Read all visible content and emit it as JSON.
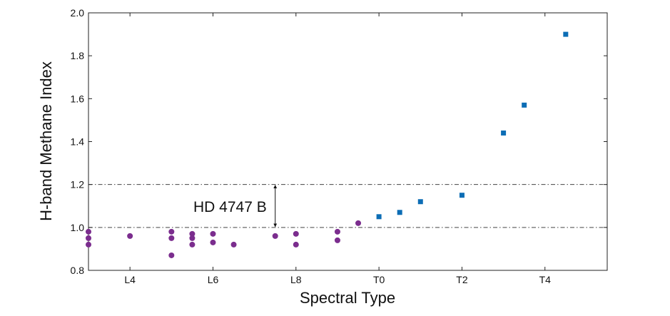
{
  "chart_data": {
    "type": "scatter",
    "title": "",
    "xlabel": "Spectral Type",
    "ylabel": "H-band Methane Index",
    "xlim": [
      13,
      25.5
    ],
    "ylim": [
      0.8,
      2.0
    ],
    "grid": false,
    "x_ticks": [
      {
        "value": 14,
        "label": "L4"
      },
      {
        "value": 16,
        "label": "L6"
      },
      {
        "value": 18,
        "label": "L8"
      },
      {
        "value": 20,
        "label": "T0"
      },
      {
        "value": 22,
        "label": "T2"
      },
      {
        "value": 24,
        "label": "T4"
      }
    ],
    "y_ticks": [
      {
        "value": 0.8,
        "label": "0.8"
      },
      {
        "value": 1.0,
        "label": "1.0"
      },
      {
        "value": 1.2,
        "label": "1.2"
      },
      {
        "value": 1.4,
        "label": "1.4"
      },
      {
        "value": 1.6,
        "label": "1.6"
      },
      {
        "value": 1.8,
        "label": "1.8"
      },
      {
        "value": 2.0,
        "label": "2.0"
      }
    ],
    "reference_lines": [
      1.0,
      1.2
    ],
    "series": [
      {
        "marker": "circle",
        "color": "#7b2d8e",
        "points": [
          {
            "x": 13.0,
            "y": 0.98
          },
          {
            "x": 13.0,
            "y": 0.95
          },
          {
            "x": 13.0,
            "y": 0.92
          },
          {
            "x": 14.0,
            "y": 0.96
          },
          {
            "x": 15.0,
            "y": 0.98
          },
          {
            "x": 15.0,
            "y": 0.95
          },
          {
            "x": 15.0,
            "y": 0.87
          },
          {
            "x": 15.5,
            "y": 0.97
          },
          {
            "x": 15.5,
            "y": 0.95
          },
          {
            "x": 15.5,
            "y": 0.92
          },
          {
            "x": 16.0,
            "y": 0.97
          },
          {
            "x": 16.0,
            "y": 0.93
          },
          {
            "x": 16.5,
            "y": 0.92
          },
          {
            "x": 17.5,
            "y": 0.96
          },
          {
            "x": 18.0,
            "y": 0.97
          },
          {
            "x": 18.0,
            "y": 0.92
          },
          {
            "x": 19.0,
            "y": 0.98
          },
          {
            "x": 19.0,
            "y": 0.94
          },
          {
            "x": 19.5,
            "y": 1.02
          }
        ]
      },
      {
        "marker": "square",
        "color": "#0c6db5",
        "points": [
          {
            "x": 20.0,
            "y": 1.05
          },
          {
            "x": 20.5,
            "y": 1.07
          },
          {
            "x": 21.0,
            "y": 1.12
          },
          {
            "x": 22.0,
            "y": 1.15
          },
          {
            "x": 23.0,
            "y": 1.44
          },
          {
            "x": 23.5,
            "y": 1.57
          },
          {
            "x": 24.5,
            "y": 1.9
          }
        ]
      }
    ],
    "annotations": [
      {
        "text": "HD 4747 B",
        "arrow_x": 17.5,
        "arrow_from": 1.0,
        "arrow_to": 1.2
      }
    ]
  }
}
